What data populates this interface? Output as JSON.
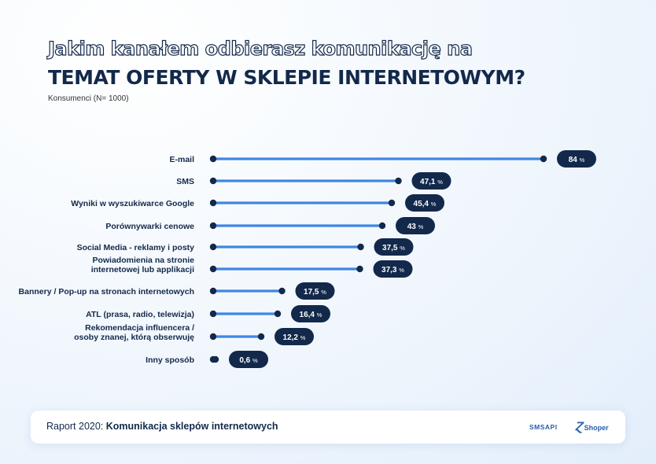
{
  "title": {
    "line1": "Jakim kanałem odbierasz komunikację na",
    "line2": "TEMAT OFERTY W SKLEPIE INTERNETOWYM?",
    "subtitle": "Konsumenci (N= 1000)"
  },
  "chart_data": {
    "type": "bar",
    "orientation": "horizontal",
    "title": "Jakim kanałem odbierasz komunikację na TEMAT OFERTY W SKLEPIE INTERNETOWYM?",
    "categories": [
      [
        "E-mail"
      ],
      [
        "SMS"
      ],
      [
        "Wyniki w wyszukiwarce Google"
      ],
      [
        "Porównywarki cenowe"
      ],
      [
        "Social Media - reklamy i posty"
      ],
      [
        "Powiadomienia na stronie",
        "internetowej lub applikacji"
      ],
      [
        "Bannery / Pop-up na stronach internetowych"
      ],
      [
        "ATL (prasa, radio, telewizja)"
      ],
      [
        "Rekomendacja influencera /",
        "osoby znanej, którą obserwuję"
      ],
      [
        "Inny sposób"
      ]
    ],
    "values": [
      84,
      47.1,
      45.4,
      43,
      37.5,
      37.3,
      17.5,
      16.4,
      12.2,
      0.6
    ],
    "labels": [
      "84",
      "47,1",
      "45,4",
      "43",
      "37,5",
      "37,3",
      "17,5",
      "16,4",
      "12,2",
      "0,6"
    ],
    "unit": "%",
    "xlim": [
      0,
      100
    ],
    "colors": {
      "bar": "#3f86e4",
      "dot": "#13294b",
      "pill": "#13294b",
      "pill_text": "#ffffff",
      "label": "#13294b"
    }
  },
  "footer": {
    "prefix": "Raport 2020: ",
    "title": "Komunikacja sklepów internetowych",
    "logo1": "SMSAPI",
    "logo2_mark": "Ɀ",
    "logo2": "Shoper"
  }
}
